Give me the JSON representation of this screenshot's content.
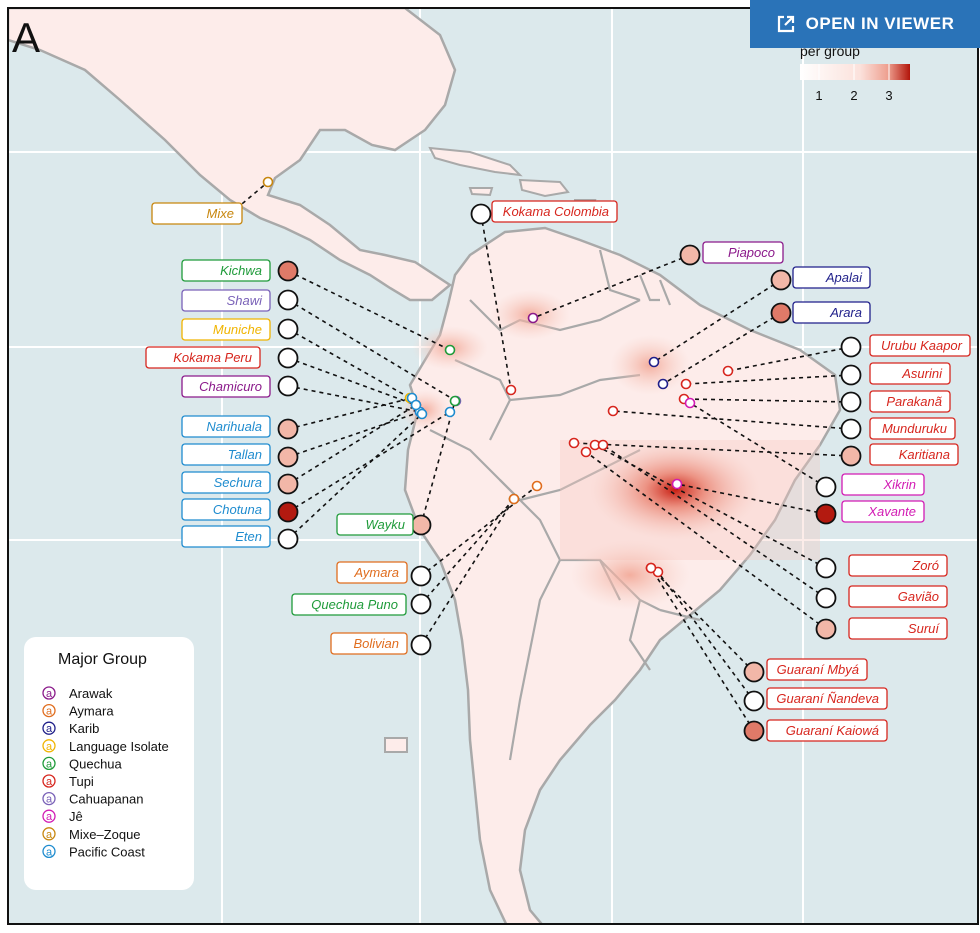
{
  "panel_label": "A",
  "viewer_button": {
    "label": "OPEN IN VIEWER",
    "icon": "external-link-icon"
  },
  "scale_legend": {
    "title": "per group",
    "ticks": [
      "1",
      "2",
      "3"
    ],
    "colors": [
      "#ffffff",
      "#f7c9c0",
      "#b2150a"
    ]
  },
  "legend": {
    "title": "Major Group",
    "symbol": "a",
    "items": [
      {
        "label": "Arawak",
        "color": "#8b1a8b"
      },
      {
        "label": "Aymara",
        "color": "#e06d1e"
      },
      {
        "label": "Karib",
        "color": "#1f1f8a"
      },
      {
        "label": "Language Isolate",
        "color": "#f0b400"
      },
      {
        "label": "Quechua",
        "color": "#1f9b3a"
      },
      {
        "label": "Tupi",
        "color": "#d7261e"
      },
      {
        "label": "Cahuapanan",
        "color": "#7a62b8"
      },
      {
        "label": "Jê",
        "color": "#d21bb4"
      },
      {
        "label": "Mixe–Zoque",
        "color": "#c7860d"
      },
      {
        "label": "Pacific Coast",
        "color": "#1f8ccf"
      }
    ]
  },
  "colors": {
    "ocean": "#dce9ec",
    "land": "#fdecea",
    "border": "#a9a9a9",
    "grid": "#ffffff",
    "circle_levels": [
      "#ffffff",
      "#f2b7a8",
      "#e07a68",
      "#b31a10"
    ]
  },
  "groups": [
    {
      "name": "Mixe",
      "family": "Mixe–Zoque",
      "level": 0
    },
    {
      "name": "Kokama Colombia",
      "family": "Tupi",
      "level": 0
    },
    {
      "name": "Piapoco",
      "family": "Arawak",
      "level": 1
    },
    {
      "name": "Kichwa",
      "family": "Quechua",
      "level": 2
    },
    {
      "name": "Apalai",
      "family": "Karib",
      "level": 1
    },
    {
      "name": "Shawi",
      "family": "Cahuapanan",
      "level": 0
    },
    {
      "name": "Arara",
      "family": "Karib",
      "level": 2
    },
    {
      "name": "Muniche",
      "family": "Language Isolate",
      "level": 0
    },
    {
      "name": "Urubu  Kaapor",
      "family": "Tupi",
      "level": 0
    },
    {
      "name": "Kokama Peru",
      "family": "Tupi",
      "level": 0
    },
    {
      "name": "Asurini",
      "family": "Tupi",
      "level": 0
    },
    {
      "name": "Chamicuro",
      "family": "Arawak",
      "level": 0
    },
    {
      "name": "Parakanã",
      "family": "Tupi",
      "level": 0
    },
    {
      "name": "Narihuala",
      "family": "Pacific Coast",
      "level": 1
    },
    {
      "name": "Munduruku",
      "family": "Tupi",
      "level": 0
    },
    {
      "name": "Tallan",
      "family": "Pacific Coast",
      "level": 1
    },
    {
      "name": "Karitiana",
      "family": "Tupi",
      "level": 1
    },
    {
      "name": "Sechura",
      "family": "Pacific Coast",
      "level": 1
    },
    {
      "name": "Xikrin",
      "family": "Jê",
      "level": 0
    },
    {
      "name": "Chotuna",
      "family": "Pacific Coast",
      "level": 3
    },
    {
      "name": "Xavante",
      "family": "Jê",
      "level": 3
    },
    {
      "name": "Wayku",
      "family": "Quechua",
      "level": 1
    },
    {
      "name": "Eten",
      "family": "Pacific Coast",
      "level": 0
    },
    {
      "name": "Zoró",
      "family": "Tupi",
      "level": 0
    },
    {
      "name": "Aymara",
      "family": "Aymara",
      "level": 0
    },
    {
      "name": "Gavião",
      "family": "Tupi",
      "level": 0
    },
    {
      "name": "Quechua  Puno",
      "family": "Quechua",
      "level": 0
    },
    {
      "name": "Suruí",
      "family": "Tupi",
      "level": 1
    },
    {
      "name": "Bolivian",
      "family": "Aymara",
      "level": 0
    },
    {
      "name": "Guaraní  Mbyá",
      "family": "Tupi",
      "level": 1
    },
    {
      "name": "Guaraní  Ñandeva",
      "family": "Tupi",
      "level": 0
    },
    {
      "name": "Guaraní  Kaiowá",
      "family": "Tupi",
      "level": 2
    }
  ]
}
